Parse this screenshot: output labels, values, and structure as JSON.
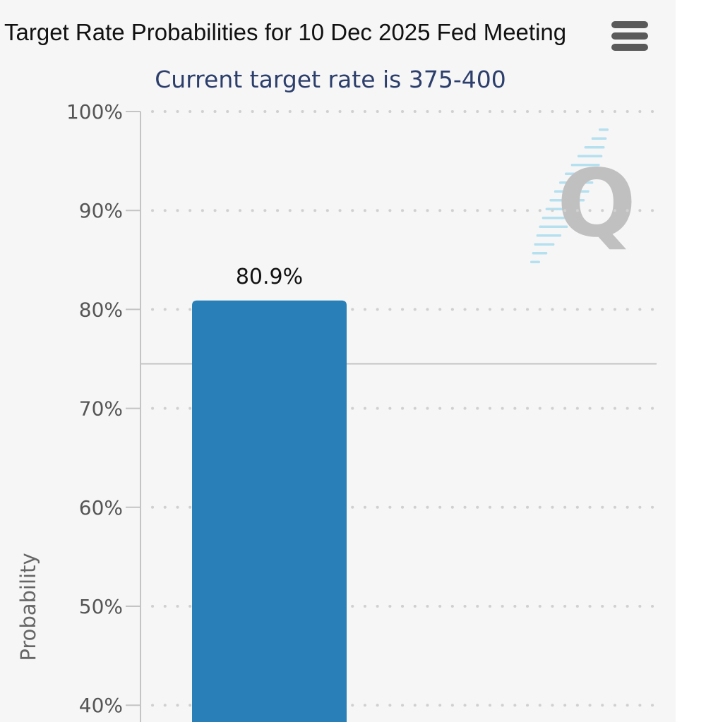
{
  "header": {
    "menu_icon": "hamburger-menu-icon"
  },
  "colors": {
    "bar": "#2980b9",
    "subtitle": "#2c3e6b",
    "axis": "#c4c4c4",
    "grid_dots": "#d0d0d0",
    "watermark_gray": "#c0c0c0",
    "watermark_blue": "#9fd8ee"
  },
  "watermark": {
    "icon": "cme-q-logo-icon"
  },
  "chart_data": {
    "type": "bar",
    "title": "Target Rate Probabilities for 10 Dec 2025 Fed Meeting",
    "subtitle": "Current target rate is 375-400",
    "ylabel": "Probability",
    "xlabel": "",
    "ylim": [
      38.5,
      100
    ],
    "y_ticks": [
      {
        "value": 100,
        "label": "100%"
      },
      {
        "value": 90,
        "label": "90%"
      },
      {
        "value": 80,
        "label": "80%"
      },
      {
        "value": 70,
        "label": "70%"
      },
      {
        "value": 60,
        "label": "60%"
      },
      {
        "value": 50,
        "label": "50%"
      },
      {
        "value": 40,
        "label": "40%"
      }
    ],
    "bars": [
      {
        "value": 80.9,
        "label": "80.9%"
      }
    ],
    "reference_line": 74.5,
    "grid": true,
    "legend": "none"
  }
}
